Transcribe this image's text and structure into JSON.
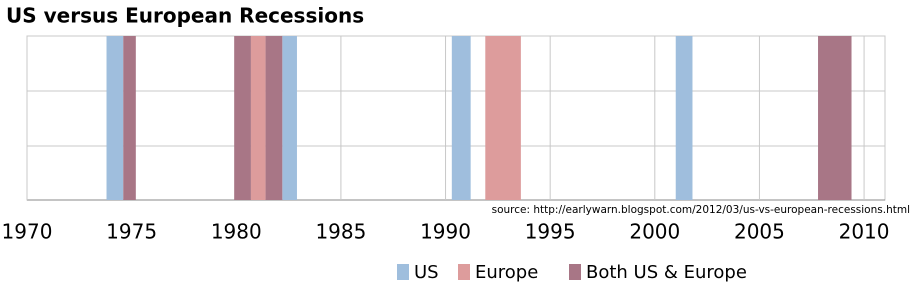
{
  "chart_data": {
    "type": "span",
    "title": "US versus European Recessions",
    "source": "source: http://earlywarn.blogspot.com/2012/03/us-vs-european-recessions.html",
    "series": [
      {
        "name": "US",
        "color": "#9fbedd",
        "spans": [
          [
            1973.8,
            1974.6
          ],
          [
            1982.2,
            1982.9
          ],
          [
            1990.3,
            1991.2
          ],
          [
            2001.0,
            2001.8
          ]
        ]
      },
      {
        "name": "Europe",
        "color": "#dd9c9c",
        "spans": [
          [
            1980.7,
            1981.4
          ],
          [
            1991.9,
            1993.6
          ]
        ]
      },
      {
        "name": "Both US & Europe",
        "color": "#a87686",
        "spans": [
          [
            1974.6,
            1975.2
          ],
          [
            1979.9,
            1980.7
          ],
          [
            1981.4,
            1982.2
          ],
          [
            2007.8,
            2009.4
          ]
        ]
      }
    ],
    "xlim": [
      1970,
      2011
    ],
    "xticks": [
      1970,
      1975,
      1980,
      1985,
      1990,
      1995,
      2000,
      2005,
      2010
    ],
    "grid": true,
    "legend": "bottom"
  }
}
